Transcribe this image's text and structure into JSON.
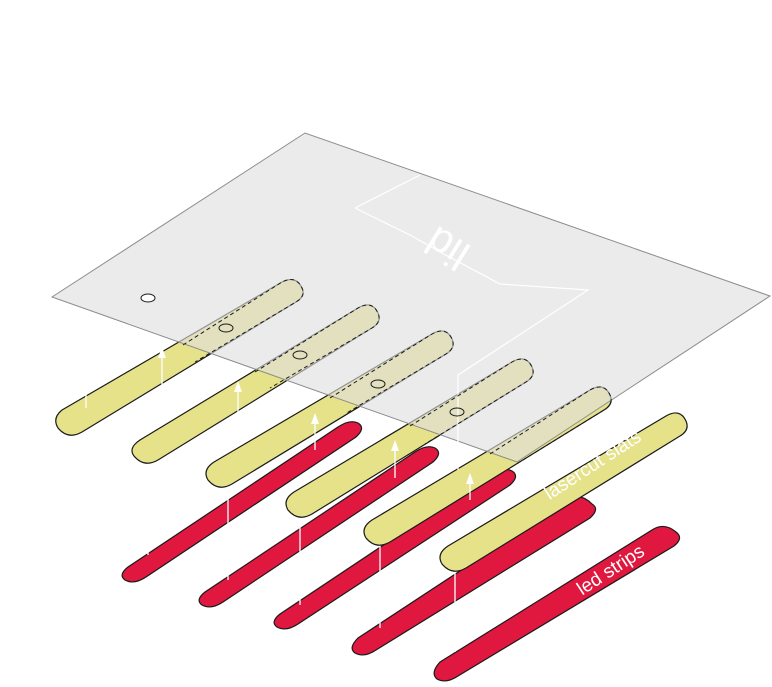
{
  "labels": {
    "lid": "lid",
    "slats": "lasercut slats",
    "leds": "led strips"
  },
  "colors": {
    "lid_fill": "#e2e2e2",
    "lid_stroke": "#8c8c8c",
    "slat_fill": "#e6e28a",
    "led_fill": "#e0173f",
    "outline": "#1a1a1a",
    "arrow": "#ffffff"
  },
  "counts": {
    "slats": 6,
    "led_strips": 5
  }
}
